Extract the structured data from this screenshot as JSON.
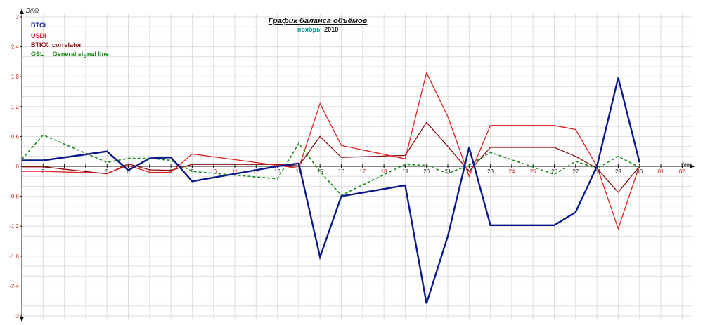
{
  "chart_data": {
    "type": "line",
    "title": "График баланса объёмов",
    "subtitle_month": "ноябрь",
    "subtitle_year": "2018",
    "ylabel": "D(%)",
    "xlabel": "date",
    "ylim": [
      -3,
      3
    ],
    "yticks": [
      "3",
      "2.4",
      "1.8",
      "1.2",
      "0.6",
      "0",
      "-0.6",
      "-1.2",
      "-1.8",
      "-2.4",
      "-3"
    ],
    "x_labels": [
      "2",
      "3",
      "4",
      "5",
      "6",
      "7",
      "8",
      "9",
      "10",
      "11",
      "12",
      "13",
      "14",
      "15",
      "16",
      "17",
      "18",
      "19",
      "20",
      "21",
      "22",
      "23",
      "24",
      "25",
      "26",
      "27",
      "28",
      "29",
      "30",
      "01",
      "02"
    ],
    "grid": true,
    "legend": [
      {
        "label": "BTCi",
        "desc": "",
        "color": "#0a1a8c"
      },
      {
        "label": "USDi",
        "desc": "",
        "color": "#e02020"
      },
      {
        "label": "BTKX",
        "desc": "correlator",
        "color": "#8b1010"
      },
      {
        "label": "GSL",
        "desc": "General signal line",
        "color": "#1a8a1a"
      }
    ],
    "series": [
      {
        "name": "BTCi",
        "color": "#0a1a8c",
        "width": 2.4,
        "dash": "",
        "x": [
          1,
          2,
          5,
          6,
          7,
          8,
          9,
          13,
          14,
          15,
          16,
          19,
          20,
          21,
          22,
          23,
          26,
          27,
          28,
          29,
          30
        ],
        "values": [
          0.12,
          0.12,
          0.3,
          -0.08,
          0.16,
          0.18,
          -0.3,
          0.0,
          0.06,
          -1.82,
          -0.6,
          -0.38,
          -2.75,
          -1.4,
          0.38,
          -1.18,
          -1.18,
          -0.92,
          0.0,
          1.78,
          0.08
        ]
      },
      {
        "name": "USDi",
        "color": "#e02020",
        "width": 1.3,
        "dash": "",
        "x": [
          1,
          2,
          5,
          6,
          7,
          8,
          9,
          13,
          14,
          15,
          16,
          19,
          20,
          21,
          22,
          23,
          26,
          27,
          28,
          29,
          30
        ],
        "values": [
          -0.1,
          -0.1,
          -0.14,
          0.02,
          -0.12,
          -0.12,
          0.25,
          0.02,
          -0.04,
          1.26,
          0.42,
          0.15,
          1.88,
          1.0,
          -0.2,
          0.82,
          0.82,
          0.74,
          0.0,
          -1.25,
          0.02
        ]
      },
      {
        "name": "BTKX",
        "color": "#8b1010",
        "width": 1.3,
        "dash": "",
        "x": [
          1,
          2,
          5,
          6,
          7,
          8,
          9,
          13,
          14,
          15,
          16,
          19,
          20,
          21,
          22,
          23,
          26,
          27,
          28,
          29,
          30
        ],
        "values": [
          -0.01,
          -0.01,
          -0.15,
          0.05,
          -0.07,
          -0.08,
          0.04,
          0.04,
          0.01,
          0.6,
          0.18,
          0.22,
          0.88,
          0.4,
          -0.1,
          0.38,
          0.38,
          0.2,
          -0.04,
          -0.52,
          0.0
        ]
      },
      {
        "name": "GSL",
        "color": "#1a8a1a",
        "width": 1.6,
        "dash": "4,3",
        "x": [
          1,
          2,
          5,
          6,
          7,
          8,
          9,
          13,
          14,
          15,
          16,
          19,
          20,
          21,
          22,
          23,
          26,
          27,
          28,
          29,
          30
        ],
        "values": [
          0.14,
          0.63,
          0.08,
          0.16,
          0.16,
          0.12,
          -0.1,
          -0.25,
          0.46,
          -0.1,
          -0.58,
          0.04,
          0.02,
          -0.14,
          0.02,
          0.28,
          -0.16,
          0.1,
          -0.04,
          0.2,
          -0.02
        ]
      }
    ]
  }
}
